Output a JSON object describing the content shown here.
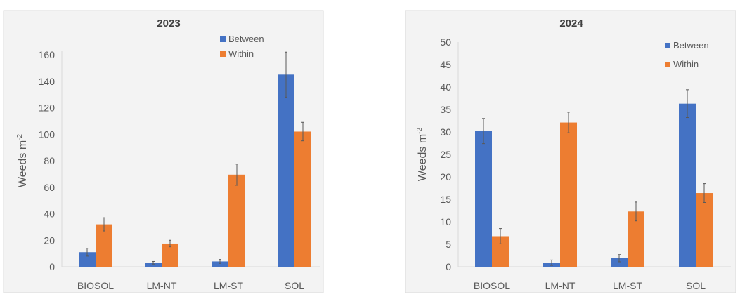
{
  "chart_data": [
    {
      "type": "bar",
      "title": "2023",
      "ylabel": "Weeds m",
      "ylabel_sup": "-2",
      "categories": [
        "BIOSOL",
        "LM-NT",
        "LM-ST",
        "SOL"
      ],
      "ylim": [
        0,
        170
      ],
      "yticks": [
        0,
        20,
        40,
        60,
        80,
        100,
        120,
        140,
        160
      ],
      "grid": false,
      "legend": "top-right",
      "series": [
        {
          "name": "Between",
          "color": "#4472c4",
          "values": [
            11,
            3,
            4,
            145
          ],
          "errors": [
            3,
            1,
            1.5,
            17
          ]
        },
        {
          "name": "Within",
          "color": "#ed7d31",
          "values": [
            32,
            17.5,
            69.5,
            102
          ],
          "errors": [
            5,
            2.5,
            8,
            7
          ]
        }
      ]
    },
    {
      "type": "bar",
      "title": "2024",
      "ylabel": "Weeds m",
      "ylabel_sup": "-2",
      "categories": [
        "BIOSOL",
        "LM-NT",
        "LM-ST",
        "SOL"
      ],
      "ylim": [
        0,
        50
      ],
      "yticks": [
        0,
        5,
        10,
        15,
        20,
        25,
        30,
        35,
        40,
        45,
        50
      ],
      "grid": false,
      "legend": "top-right",
      "series": [
        {
          "name": "Between",
          "color": "#4472c4",
          "values": [
            30.2,
            0.9,
            1.9,
            36.3
          ],
          "errors": [
            2.8,
            0.6,
            0.8,
            3.1
          ]
        },
        {
          "name": "Within",
          "color": "#ed7d31",
          "values": [
            6.8,
            32.1,
            12.3,
            16.4
          ],
          "errors": [
            1.7,
            2.3,
            2.1,
            2.1
          ]
        }
      ]
    }
  ]
}
